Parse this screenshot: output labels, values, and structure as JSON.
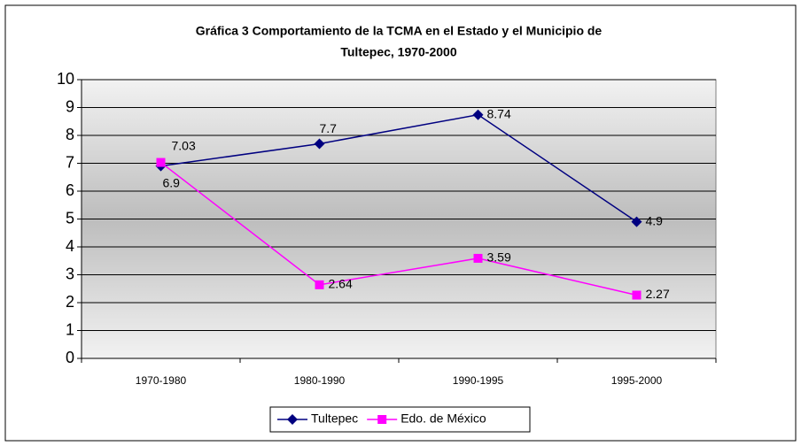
{
  "chart_data": {
    "type": "line",
    "title": [
      "Gráfica 3 Comportamiento de la TCMA en el Estado y el Municipio de",
      "Tultepec, 1970-2000"
    ],
    "categories": [
      "1970-1980",
      "1980-1990",
      "1990-1995",
      "1995-2000"
    ],
    "series": [
      {
        "name": "Tultepec",
        "color": "#000080",
        "marker": "diamond",
        "values": [
          6.9,
          7.7,
          8.74,
          4.9
        ]
      },
      {
        "name": "Edo. de México",
        "color": "#ff00ff",
        "marker": "square",
        "values": [
          7.03,
          2.64,
          3.59,
          2.27
        ]
      }
    ],
    "ylim": [
      0,
      10
    ],
    "yticks": [
      0,
      1,
      2,
      3,
      4,
      5,
      6,
      7,
      8,
      9,
      10
    ],
    "grid": true,
    "legend": "bottom"
  }
}
